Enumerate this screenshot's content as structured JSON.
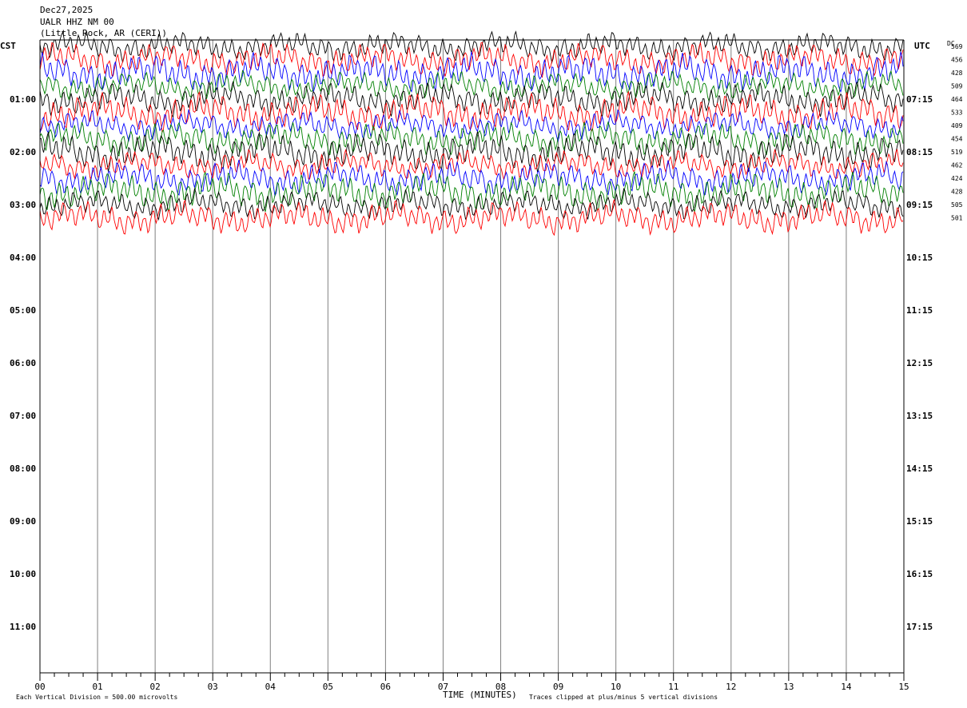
{
  "header": {
    "date": "Dec27,2025",
    "station": "UALR HHZ NM 00",
    "location": "(Little Rock, AR (CERI))"
  },
  "labels": {
    "left_tz": "CST",
    "right_tz": "UTC",
    "dc_header": "DC",
    "xlabel": "TIME (MINUTES)",
    "scale_note": "Each Vertical Division =  500.00 microvolts",
    "clip_note": "Traces clipped at plus/minus 5 vertical divisions"
  },
  "colors": {
    "trace_cycle": [
      "#000000",
      "#ff0000",
      "#0000ff",
      "#008000"
    ],
    "grid": "#808080"
  },
  "chart_data": {
    "type": "line",
    "title": "UALR HHZ NM 00",
    "xlabel": "TIME (MINUTES)",
    "x_ticks": [
      "00",
      "01",
      "02",
      "03",
      "04",
      "05",
      "06",
      "07",
      "08",
      "09",
      "10",
      "11",
      "12",
      "13",
      "14",
      "15"
    ],
    "xlim": [
      0,
      15
    ],
    "left_hour_labels": [
      "01:00",
      "02:00",
      "03:00",
      "04:00",
      "05:00",
      "06:00",
      "07:00",
      "08:00",
      "09:00",
      "10:00",
      "11:00"
    ],
    "right_hour_labels": [
      "07:15",
      "08:15",
      "09:15",
      "10:15",
      "11:15",
      "12:15",
      "13:15",
      "14:15",
      "15:15",
      "16:15",
      "17:15"
    ],
    "dc_offsets": [
      "569",
      "456",
      "428",
      "509",
      "464",
      "533",
      "409",
      "454",
      "519",
      "462",
      "424",
      "428",
      "505",
      "501"
    ],
    "traces_per_hour": 4,
    "recorded_traces": 14,
    "trace_amplitude_divisions": 5
  }
}
